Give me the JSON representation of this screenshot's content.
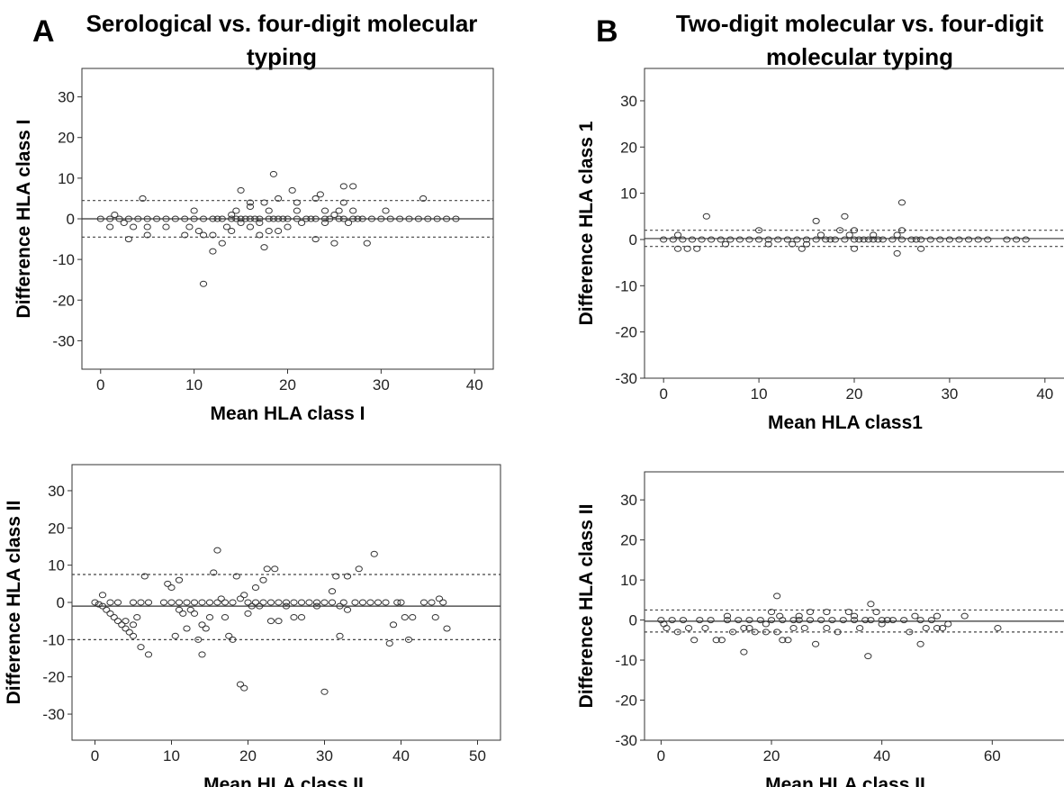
{
  "panels": {
    "a": {
      "letter": "A",
      "title_line1": "Serological vs. four-digit molecular",
      "title_line2": "typing"
    },
    "b": {
      "letter": "B",
      "title_line1": "Two-digit molecular vs. four-digit",
      "title_line2": "molecular typing"
    }
  },
  "chart_data": [
    {
      "type": "scatter",
      "panel": "A",
      "xlabel": "Mean HLA class I",
      "ylabel": "Difference HLA class I",
      "xlim": [
        -2,
        42
      ],
      "ylim": [
        -37,
        37
      ],
      "xticks": [
        0,
        10,
        20,
        30,
        40
      ],
      "yticks": [
        30,
        20,
        10,
        0,
        -10,
        -20,
        -30
      ],
      "mean_line": 0,
      "limit_upper": 4.5,
      "limit_lower": -4.5,
      "points": [
        [
          0,
          0
        ],
        [
          1,
          0
        ],
        [
          1.5,
          1
        ],
        [
          1,
          -2
        ],
        [
          2,
          0
        ],
        [
          2.5,
          -1
        ],
        [
          3,
          0
        ],
        [
          3.5,
          -2
        ],
        [
          3,
          -5
        ],
        [
          4,
          0
        ],
        [
          4.5,
          5
        ],
        [
          5,
          0
        ],
        [
          5,
          -2
        ],
        [
          5,
          -4
        ],
        [
          6,
          0
        ],
        [
          7,
          0
        ],
        [
          7,
          -2
        ],
        [
          8,
          0
        ],
        [
          9,
          0
        ],
        [
          9,
          -4
        ],
        [
          9.5,
          -2
        ],
        [
          10,
          0
        ],
        [
          10,
          2
        ],
        [
          10.5,
          -3
        ],
        [
          11,
          0
        ],
        [
          11,
          -4
        ],
        [
          11,
          -16
        ],
        [
          12,
          0
        ],
        [
          12,
          -4
        ],
        [
          12,
          -8
        ],
        [
          12.5,
          0
        ],
        [
          13,
          0
        ],
        [
          13,
          -6
        ],
        [
          13.5,
          -2
        ],
        [
          14,
          0
        ],
        [
          14,
          1
        ],
        [
          14,
          -3
        ],
        [
          14.5,
          0
        ],
        [
          14.5,
          2
        ],
        [
          15,
          0
        ],
        [
          15,
          7
        ],
        [
          15,
          -1
        ],
        [
          15.5,
          0
        ],
        [
          16,
          0
        ],
        [
          16,
          3
        ],
        [
          16,
          -2
        ],
        [
          16,
          4
        ],
        [
          16.5,
          0
        ],
        [
          17,
          0
        ],
        [
          17,
          -1
        ],
        [
          17,
          -4
        ],
        [
          17.5,
          4
        ],
        [
          17.5,
          -7
        ],
        [
          18,
          0
        ],
        [
          18,
          2
        ],
        [
          18,
          -3
        ],
        [
          18.5,
          11
        ],
        [
          18.5,
          0
        ],
        [
          19,
          0
        ],
        [
          19,
          5
        ],
        [
          19,
          -3
        ],
        [
          19.5,
          0
        ],
        [
          20,
          0
        ],
        [
          20,
          -2
        ],
        [
          20.5,
          7
        ],
        [
          21,
          0
        ],
        [
          21,
          2
        ],
        [
          21,
          4
        ],
        [
          21.5,
          -1
        ],
        [
          22,
          0
        ],
        [
          22.5,
          0
        ],
        [
          23,
          0
        ],
        [
          23,
          5
        ],
        [
          23,
          -5
        ],
        [
          23.5,
          6
        ],
        [
          24,
          0
        ],
        [
          24,
          2
        ],
        [
          24,
          -1
        ],
        [
          24.5,
          0
        ],
        [
          25,
          -6
        ],
        [
          25,
          1
        ],
        [
          25.5,
          0
        ],
        [
          25.5,
          2
        ],
        [
          26,
          0
        ],
        [
          26,
          8
        ],
        [
          26,
          4
        ],
        [
          26.5,
          -1
        ],
        [
          27,
          0
        ],
        [
          27,
          8
        ],
        [
          27,
          2
        ],
        [
          27.5,
          0
        ],
        [
          28,
          0
        ],
        [
          28.5,
          -6
        ],
        [
          29,
          0
        ],
        [
          30,
          0
        ],
        [
          30.5,
          2
        ],
        [
          31,
          0
        ],
        [
          32,
          0
        ],
        [
          33,
          0
        ],
        [
          34,
          0
        ],
        [
          34.5,
          5
        ],
        [
          35,
          0
        ],
        [
          36,
          0
        ],
        [
          37,
          0
        ],
        [
          38,
          0
        ]
      ]
    },
    {
      "type": "scatter",
      "panel": "B",
      "xlabel": "Mean HLA class1",
      "ylabel": "Difference HLA class 1",
      "xlim": [
        -2,
        42
      ],
      "ylim": [
        -30,
        37
      ],
      "xticks": [
        0,
        10,
        20,
        30,
        40
      ],
      "yticks": [
        30,
        20,
        10,
        0,
        -10,
        -20,
        -30
      ],
      "mean_line": 0.2,
      "limit_upper": 2,
      "limit_lower": -1.5,
      "points": [
        [
          0,
          0
        ],
        [
          1,
          0
        ],
        [
          1.5,
          1
        ],
        [
          1.5,
          -2
        ],
        [
          2,
          0
        ],
        [
          2.5,
          -2
        ],
        [
          3,
          0
        ],
        [
          3.5,
          -2
        ],
        [
          4,
          0
        ],
        [
          4.5,
          5
        ],
        [
          5,
          0
        ],
        [
          6,
          0
        ],
        [
          6.5,
          -1
        ],
        [
          7,
          0
        ],
        [
          8,
          0
        ],
        [
          9,
          0
        ],
        [
          10,
          0
        ],
        [
          10,
          2
        ],
        [
          11,
          0
        ],
        [
          11,
          -1
        ],
        [
          12,
          0
        ],
        [
          13,
          0
        ],
        [
          13.5,
          -1
        ],
        [
          14,
          0
        ],
        [
          14.5,
          -2
        ],
        [
          15,
          0
        ],
        [
          15,
          -1
        ],
        [
          16,
          0
        ],
        [
          16,
          4
        ],
        [
          16.5,
          1
        ],
        [
          17,
          0
        ],
        [
          17.5,
          0
        ],
        [
          18,
          0
        ],
        [
          18.5,
          2
        ],
        [
          19,
          0
        ],
        [
          19,
          5
        ],
        [
          19.5,
          1
        ],
        [
          20,
          0
        ],
        [
          20,
          2
        ],
        [
          20,
          -2
        ],
        [
          20.5,
          0
        ],
        [
          21,
          0
        ],
        [
          21.5,
          0
        ],
        [
          22,
          0
        ],
        [
          22,
          1
        ],
        [
          22.5,
          0
        ],
        [
          23,
          0
        ],
        [
          24,
          0
        ],
        [
          24.5,
          1
        ],
        [
          24.5,
          -3
        ],
        [
          25,
          0
        ],
        [
          25,
          8
        ],
        [
          25,
          2
        ],
        [
          26,
          0
        ],
        [
          26.5,
          0
        ],
        [
          27,
          0
        ],
        [
          27,
          -2
        ],
        [
          28,
          0
        ],
        [
          29,
          0
        ],
        [
          30,
          0
        ],
        [
          31,
          0
        ],
        [
          32,
          0
        ],
        [
          33,
          0
        ],
        [
          34,
          0
        ],
        [
          36,
          0
        ],
        [
          37,
          0
        ],
        [
          38,
          0
        ]
      ]
    },
    {
      "type": "scatter",
      "panel": "A",
      "xlabel": "Mean HLA class II",
      "ylabel": "Difference HLA class II",
      "xlim": [
        -3,
        53
      ],
      "ylim": [
        -37,
        37
      ],
      "xticks": [
        0,
        10,
        20,
        30,
        40,
        50
      ],
      "yticks": [
        30,
        20,
        10,
        0,
        -10,
        -20,
        -30
      ],
      "mean_line": -1,
      "limit_upper": 7.5,
      "limit_lower": -10,
      "points": [
        [
          0,
          0
        ],
        [
          0.5,
          -0.5
        ],
        [
          1,
          2
        ],
        [
          1,
          -1
        ],
        [
          1.5,
          -2
        ],
        [
          2,
          0
        ],
        [
          2,
          -3
        ],
        [
          2.5,
          -4
        ],
        [
          3,
          0
        ],
        [
          3,
          -5
        ],
        [
          3.5,
          -6
        ],
        [
          4,
          -7
        ],
        [
          4,
          -5
        ],
        [
          4.5,
          -8
        ],
        [
          5,
          -9
        ],
        [
          5,
          0
        ],
        [
          5,
          -6
        ],
        [
          5.5,
          -4
        ],
        [
          6,
          0
        ],
        [
          6,
          -12
        ],
        [
          6.5,
          7
        ],
        [
          7,
          0
        ],
        [
          7,
          -14
        ],
        [
          9,
          0
        ],
        [
          9.5,
          5
        ],
        [
          10,
          4
        ],
        [
          10,
          0
        ],
        [
          10.5,
          -9
        ],
        [
          11,
          0
        ],
        [
          11,
          6
        ],
        [
          11,
          -2
        ],
        [
          11.5,
          -3
        ],
        [
          12,
          0
        ],
        [
          12,
          -7
        ],
        [
          12.5,
          -2
        ],
        [
          13,
          0
        ],
        [
          13,
          -3
        ],
        [
          13.5,
          -10
        ],
        [
          14,
          0
        ],
        [
          14,
          -6
        ],
        [
          14,
          -14
        ],
        [
          14.5,
          -7
        ],
        [
          15,
          0
        ],
        [
          15,
          -4
        ],
        [
          15.5,
          8
        ],
        [
          16,
          0
        ],
        [
          16,
          14
        ],
        [
          16.5,
          1
        ],
        [
          17,
          0
        ],
        [
          17,
          -4
        ],
        [
          17.5,
          -9
        ],
        [
          18,
          0
        ],
        [
          18,
          -10
        ],
        [
          18.5,
          7
        ],
        [
          19,
          -22
        ],
        [
          19,
          1
        ],
        [
          19.5,
          -23
        ],
        [
          19.5,
          2
        ],
        [
          20,
          0
        ],
        [
          20,
          -3
        ],
        [
          20.5,
          -1
        ],
        [
          21,
          0
        ],
        [
          21,
          4
        ],
        [
          21.5,
          -1
        ],
        [
          22,
          0
        ],
        [
          22,
          6
        ],
        [
          22.5,
          9
        ],
        [
          23,
          0
        ],
        [
          23,
          -5
        ],
        [
          23.5,
          9
        ],
        [
          24,
          0
        ],
        [
          24,
          -5
        ],
        [
          25,
          0
        ],
        [
          25,
          -1
        ],
        [
          26,
          0
        ],
        [
          26,
          -4
        ],
        [
          27,
          0
        ],
        [
          27,
          -4
        ],
        [
          28,
          0
        ],
        [
          29,
          0
        ],
        [
          29,
          -1
        ],
        [
          30,
          0
        ],
        [
          30,
          -24
        ],
        [
          31,
          3
        ],
        [
          31,
          0
        ],
        [
          31.5,
          7
        ],
        [
          32,
          -9
        ],
        [
          32,
          -1
        ],
        [
          32.5,
          0
        ],
        [
          33,
          7
        ],
        [
          33,
          -2
        ],
        [
          34,
          0
        ],
        [
          34.5,
          9
        ],
        [
          35,
          0
        ],
        [
          36,
          0
        ],
        [
          36.5,
          13
        ],
        [
          37,
          0
        ],
        [
          38,
          0
        ],
        [
          38.5,
          -11
        ],
        [
          39,
          -6
        ],
        [
          39.5,
          0
        ],
        [
          40,
          0
        ],
        [
          40.5,
          -4
        ],
        [
          41,
          -10
        ],
        [
          41.5,
          -4
        ],
        [
          43,
          0
        ],
        [
          44,
          0
        ],
        [
          44.5,
          -4
        ],
        [
          45,
          1
        ],
        [
          45.5,
          0
        ],
        [
          46,
          -7
        ]
      ]
    },
    {
      "type": "scatter",
      "panel": "B",
      "xlabel": "Mean HLA class II",
      "ylabel": "Difference HLA class II",
      "xlim": [
        -3,
        73
      ],
      "ylim": [
        -30,
        37
      ],
      "xticks": [
        0,
        20,
        40,
        60
      ],
      "yticks": [
        30,
        20,
        10,
        0,
        -10,
        -20,
        -30
      ],
      "mean_line": -0.3,
      "limit_upper": 2.5,
      "limit_lower": -3,
      "points": [
        [
          0,
          0
        ],
        [
          0.5,
          -1
        ],
        [
          1,
          -2
        ],
        [
          2,
          0
        ],
        [
          3,
          -3
        ],
        [
          4,
          0
        ],
        [
          5,
          -2
        ],
        [
          6,
          -5
        ],
        [
          7,
          0
        ],
        [
          8,
          -2
        ],
        [
          9,
          0
        ],
        [
          10,
          -5
        ],
        [
          11,
          -5
        ],
        [
          12,
          0
        ],
        [
          12,
          1
        ],
        [
          13,
          -3
        ],
        [
          14,
          0
        ],
        [
          15,
          -2
        ],
        [
          15,
          -8
        ],
        [
          16,
          0
        ],
        [
          16,
          -2
        ],
        [
          17,
          -3
        ],
        [
          18,
          0
        ],
        [
          19,
          -3
        ],
        [
          19,
          -1
        ],
        [
          20,
          0
        ],
        [
          20,
          2
        ],
        [
          21,
          -3
        ],
        [
          21,
          6
        ],
        [
          21.5,
          1
        ],
        [
          22,
          0
        ],
        [
          22,
          -5
        ],
        [
          23,
          -5
        ],
        [
          24,
          0
        ],
        [
          24,
          -2
        ],
        [
          25,
          0
        ],
        [
          25,
          1
        ],
        [
          26,
          -2
        ],
        [
          27,
          0
        ],
        [
          27,
          2
        ],
        [
          28,
          -6
        ],
        [
          29,
          0
        ],
        [
          30,
          -2
        ],
        [
          30,
          2
        ],
        [
          31,
          0
        ],
        [
          32,
          -3
        ],
        [
          33,
          0
        ],
        [
          34,
          2
        ],
        [
          35,
          0
        ],
        [
          35,
          1
        ],
        [
          36,
          -2
        ],
        [
          37,
          0
        ],
        [
          37.5,
          -9
        ],
        [
          38,
          4
        ],
        [
          38,
          0
        ],
        [
          39,
          2
        ],
        [
          40,
          0
        ],
        [
          40,
          -1
        ],
        [
          41,
          0
        ],
        [
          42,
          0
        ],
        [
          44,
          0
        ],
        [
          45,
          -3
        ],
        [
          46,
          1
        ],
        [
          47,
          0
        ],
        [
          47,
          -6
        ],
        [
          48,
          -2
        ],
        [
          49,
          0
        ],
        [
          50,
          -2
        ],
        [
          50,
          1
        ],
        [
          51,
          -2
        ],
        [
          52,
          -1
        ],
        [
          55,
          1
        ],
        [
          61,
          -2
        ]
      ]
    }
  ]
}
